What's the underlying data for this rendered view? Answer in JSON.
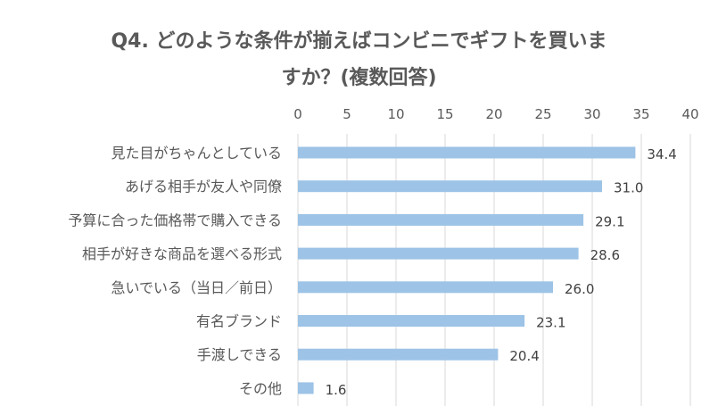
{
  "chart_data": {
    "type": "bar",
    "orientation": "horizontal",
    "title_lines": [
      "Q4. どのような条件が揃えばコンビニでギフトを買いま",
      "すか？(複数回答)"
    ],
    "categories": [
      "見た目がちゃんとしている",
      "あげる相手が友人や同僚",
      "予算に合った価格帯で購入できる",
      "相手が好きな商品を選べる形式",
      "急いでいる（当日／前日）",
      "有名ブランド",
      "手渡しできる",
      "その他"
    ],
    "values": [
      34.4,
      31.0,
      29.1,
      28.6,
      26.0,
      23.1,
      20.4,
      1.6
    ],
    "value_labels": [
      "34.4",
      "31.0",
      "29.1",
      "28.6",
      "26.0",
      "23.1",
      "20.4",
      "1.6"
    ],
    "xlim": [
      0,
      40
    ],
    "x_ticks": [
      "0",
      "5",
      "10",
      "15",
      "20",
      "25",
      "30",
      "35",
      "40"
    ],
    "axis_position": "top",
    "grid": true,
    "legend": "none",
    "bar_color": "#9dc3e6",
    "grid_color": "#d9d9d9",
    "text_color": "#595959"
  }
}
